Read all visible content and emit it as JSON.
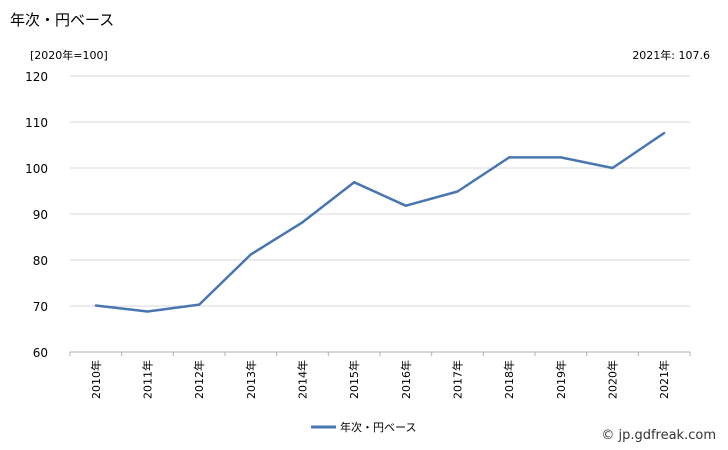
{
  "header": {
    "title": "年次・円ベース",
    "unit_note": "[2020年=100]",
    "latest_note": "2021年: 107.6"
  },
  "footer": {
    "credit": "© jp.gdfreak.com"
  },
  "colors": {
    "series": "#4a76b0",
    "grid": "#d9d9d9",
    "axis": "#b0b0b0"
  },
  "chart_data": {
    "type": "line",
    "categories": [
      "2010年",
      "2011年",
      "2012年",
      "2013年",
      "2014年",
      "2015年",
      "2016年",
      "2017年",
      "2018年",
      "2019年",
      "2020年",
      "2021年"
    ],
    "series": [
      {
        "name": "年次・円ベース",
        "values": [
          70.1,
          68.8,
          70.3,
          81.2,
          88.2,
          96.9,
          91.8,
          94.9,
          102.3,
          102.3,
          100.0,
          107.6
        ]
      }
    ],
    "ylim": [
      60,
      120
    ],
    "yticks": [
      60,
      70,
      80,
      90,
      100,
      110,
      120
    ],
    "grid": true,
    "legend": "bottom"
  }
}
